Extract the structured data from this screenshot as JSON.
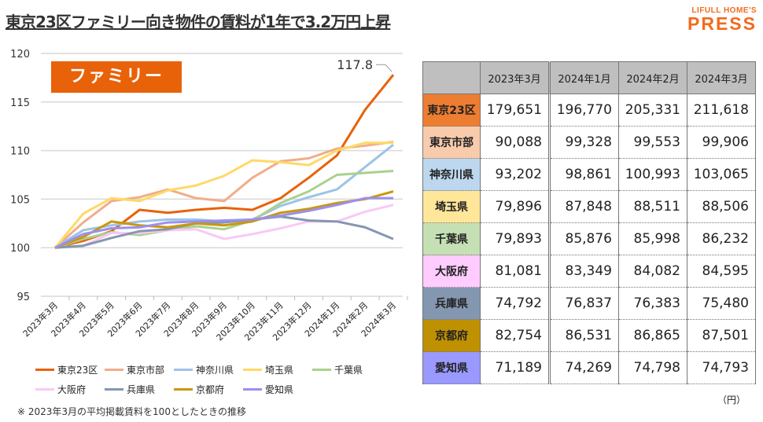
{
  "title": "東京23区ファミリー向き物件の賃料が1年で3.2万円上昇",
  "logo": {
    "line1": "LIFULL HOME'S",
    "line2": "PRESS"
  },
  "badge": "ファミリー",
  "note": "※ 2023年3月の平均掲載賃料を100としたときの推移",
  "unit": "（円）",
  "chart_data": {
    "type": "line",
    "categories": [
      "2023年3月",
      "2023年4月",
      "2023年5月",
      "2023年6月",
      "2023年7月",
      "2023年8月",
      "2023年9月",
      "2023年10月",
      "2023年11月",
      "2023年12月",
      "2024年1月",
      "2024年2月",
      "2024年3月"
    ],
    "ylim": [
      95,
      120
    ],
    "yticks": [
      "95",
      "100",
      "105",
      "110",
      "115",
      "120"
    ],
    "grid": true,
    "legend": "bottom",
    "annotation": "117.8",
    "series": [
      {
        "name": "東京23区",
        "color": "#e8620a",
        "values": [
          100,
          100.7,
          101.7,
          103.9,
          103.6,
          103.9,
          104.1,
          103.9,
          105.1,
          107.2,
          109.5,
          114.2,
          117.8
        ]
      },
      {
        "name": "東京市部",
        "color": "#f0ad8a",
        "values": [
          100,
          102.6,
          104.8,
          105.2,
          106.0,
          105.1,
          104.8,
          107.2,
          108.9,
          109.2,
          110.2,
          110.5,
          110.9
        ]
      },
      {
        "name": "神奈川県",
        "color": "#9dc3e6",
        "values": [
          100,
          101.8,
          102.3,
          102.7,
          102.9,
          102.9,
          102.7,
          102.9,
          104.3,
          105.2,
          106.0,
          108.3,
          110.6
        ]
      },
      {
        "name": "埼玉県",
        "color": "#ffd966",
        "values": [
          100,
          103.5,
          105.1,
          104.8,
          105.9,
          106.4,
          107.4,
          109.0,
          108.8,
          108.5,
          110.0,
          110.8,
          110.8
        ]
      },
      {
        "name": "千葉県",
        "color": "#a9d18e",
        "values": [
          100,
          100.9,
          101.6,
          101.3,
          101.8,
          102.2,
          101.9,
          102.8,
          104.6,
          105.8,
          107.5,
          107.7,
          107.9
        ]
      },
      {
        "name": "大阪府",
        "color": "#f9c9f5",
        "values": [
          100,
          100.2,
          101.5,
          101.5,
          101.8,
          101.9,
          100.9,
          101.4,
          102.0,
          102.7,
          102.7,
          103.7,
          104.4
        ]
      },
      {
        "name": "兵庫県",
        "color": "#8497b0",
        "values": [
          100,
          100.2,
          101.0,
          101.7,
          101.9,
          102.5,
          102.6,
          102.9,
          103.2,
          102.8,
          102.7,
          102.1,
          100.9
        ]
      },
      {
        "name": "京都府",
        "color": "#c9980a",
        "values": [
          100,
          101.1,
          102.7,
          102.3,
          102.1,
          102.5,
          102.3,
          102.7,
          103.6,
          104.0,
          104.6,
          105.0,
          105.8
        ]
      },
      {
        "name": "愛知県",
        "color": "#9b8ff0",
        "values": [
          100,
          101.4,
          102.0,
          102.1,
          102.6,
          102.7,
          102.8,
          102.9,
          103.3,
          103.8,
          104.4,
          105.1,
          105.1
        ]
      }
    ]
  },
  "table": {
    "headers": [
      "2023年3月",
      "2024年1月",
      "2024年2月",
      "2024年3月"
    ],
    "rows": [
      {
        "label": "東京23区",
        "color": "#ed7d31",
        "values": [
          "179,651",
          "196,770",
          "205,331",
          "211,618"
        ]
      },
      {
        "label": "東京市部",
        "color": "#f8cbad",
        "values": [
          "90,088",
          "99,328",
          "99,553",
          "99,906"
        ]
      },
      {
        "label": "神奈川県",
        "color": "#bdd7ee",
        "values": [
          "93,202",
          "98,861",
          "100,993",
          "103,065"
        ]
      },
      {
        "label": "埼玉県",
        "color": "#ffe699",
        "values": [
          "79,896",
          "87,848",
          "88,511",
          "88,506"
        ]
      },
      {
        "label": "千葉県",
        "color": "#c5e0b4",
        "values": [
          "79,893",
          "85,876",
          "85,998",
          "86,232"
        ]
      },
      {
        "label": "大阪府",
        "color": "#ffccff",
        "values": [
          "81,081",
          "83,349",
          "84,082",
          "84,595"
        ]
      },
      {
        "label": "兵庫県",
        "color": "#8497b0",
        "values": [
          "74,792",
          "76,837",
          "76,383",
          "75,480"
        ]
      },
      {
        "label": "京都府",
        "color": "#bf9000",
        "values": [
          "82,754",
          "86,531",
          "86,865",
          "87,501"
        ]
      },
      {
        "label": "愛知県",
        "color": "#9999ff",
        "values": [
          "71,189",
          "74,269",
          "74,798",
          "74,793"
        ]
      }
    ]
  }
}
